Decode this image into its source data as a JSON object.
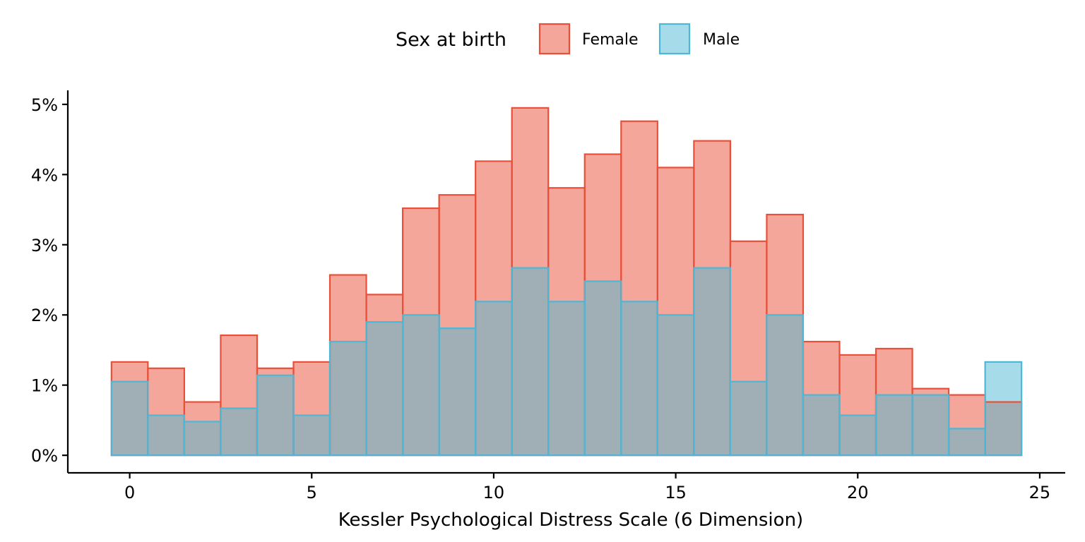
{
  "chart_data": {
    "type": "bar",
    "subtype": "overlapping-histogram",
    "title": "",
    "xlabel": "Kessler Psychological Distress Scale (6 Dimension)",
    "ylabel": "",
    "x": [
      0,
      1,
      2,
      3,
      4,
      5,
      6,
      7,
      8,
      9,
      10,
      11,
      12,
      13,
      14,
      15,
      16,
      17,
      18,
      19,
      20,
      21,
      22,
      23,
      24
    ],
    "bin_width": 1,
    "xlim": [
      -1.7,
      25.7
    ],
    "ylim": [
      -0.25,
      5.2
    ],
    "xticks": [
      0,
      5,
      10,
      15,
      20,
      25
    ],
    "yticks": [
      0,
      1,
      2,
      3,
      4,
      5
    ],
    "ytick_labels": [
      "0%",
      "1%",
      "2%",
      "3%",
      "4%",
      "5%"
    ],
    "xtick_labels": [
      "0",
      "5",
      "10",
      "15",
      "20",
      "25"
    ],
    "series": [
      {
        "name": "Female",
        "fill": "#f4a69a",
        "stroke": "#e8503a",
        "values": [
          1.33,
          1.24,
          0.76,
          1.71,
          1.24,
          1.33,
          2.57,
          2.29,
          3.52,
          3.71,
          4.19,
          4.95,
          3.81,
          4.29,
          4.76,
          4.1,
          4.48,
          3.05,
          3.43,
          1.62,
          1.43,
          1.52,
          0.95,
          0.86,
          0.76
        ]
      },
      {
        "name": "Male",
        "fill": "#a6dce9",
        "stroke": "#4db7d6",
        "values": [
          1.05,
          0.57,
          0.48,
          0.67,
          1.14,
          0.57,
          1.62,
          1.9,
          2.0,
          1.81,
          2.19,
          2.67,
          2.19,
          2.48,
          2.19,
          2.0,
          2.67,
          1.05,
          2.0,
          0.86,
          0.57,
          0.86,
          0.86,
          0.38,
          1.33
        ]
      }
    ],
    "overlap_fill": "#a0afb6",
    "grid": false,
    "legend": {
      "title": "Sex at birth",
      "position": "top"
    }
  }
}
